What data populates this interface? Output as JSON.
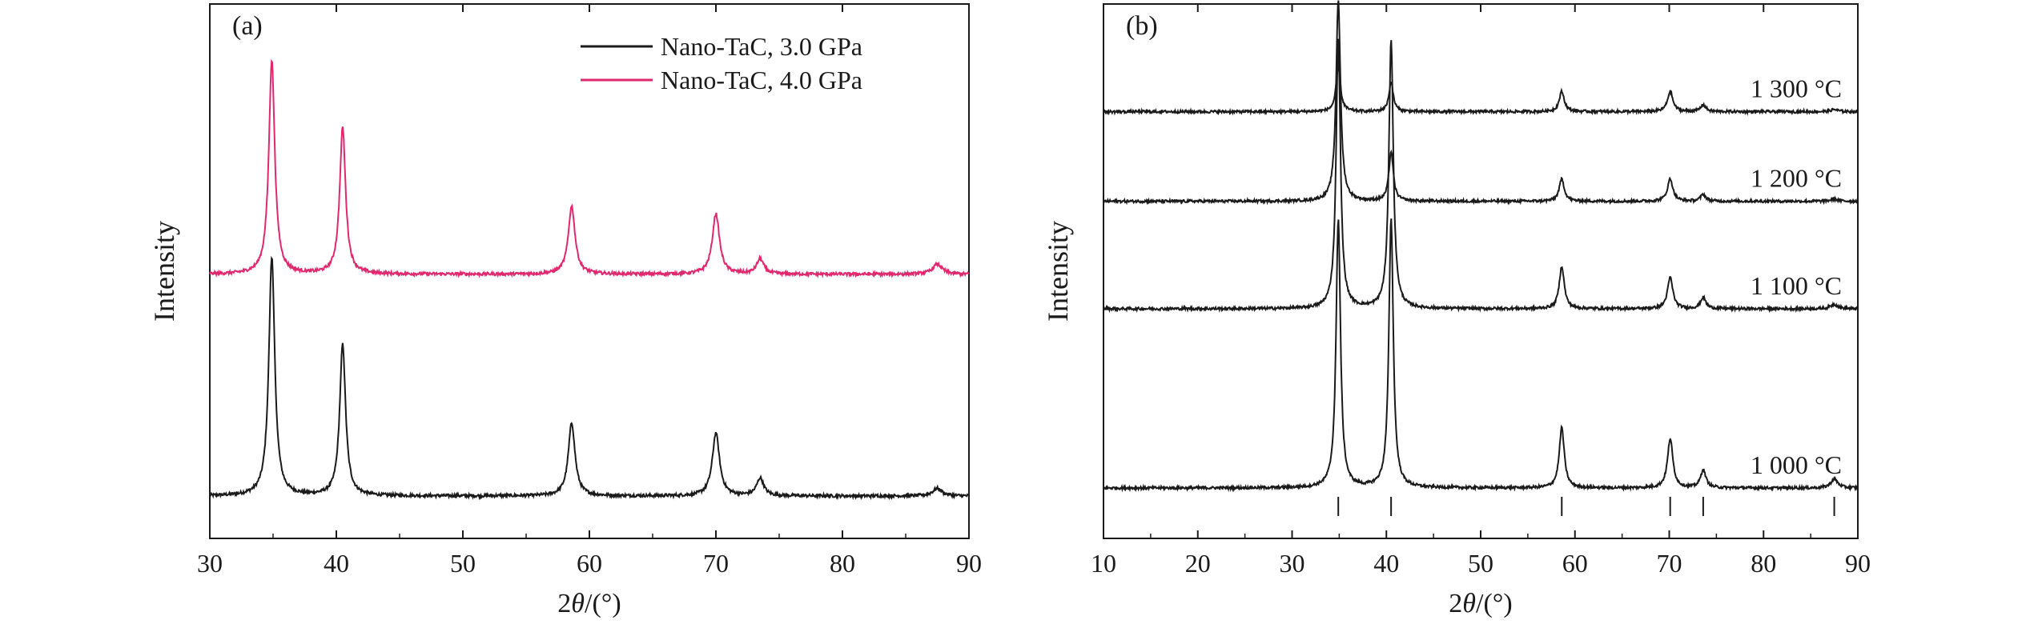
{
  "colors": {
    "black_series": "#1a1a1a",
    "pink_series": "#e0286f",
    "orange_core": "#e0a010"
  },
  "chart_data": [
    {
      "type": "line",
      "panel_label": "(a)",
      "xlabel_prefix": "2",
      "xlabel_theta": "θ",
      "xlabel_suffix": "/(°)",
      "ylabel": "Intensity",
      "xlim": [
        30,
        90
      ],
      "xticks": [
        30,
        40,
        50,
        60,
        70,
        80,
        90
      ],
      "yticks_shown": false,
      "grid": false,
      "legend_position": "top-right",
      "peaks_2theta": [
        34.9,
        40.5,
        58.6,
        70.0,
        73.5,
        87.5
      ],
      "series": [
        {
          "name": "Nano-TaC, 3.0 GPa",
          "color": "#1a1a1a",
          "baseline": 0.0,
          "peak_heights": [
            0.95,
            0.6,
            0.29,
            0.25,
            0.07,
            0.03
          ]
        },
        {
          "name": "Nano-TaC, 4.0 GPa",
          "color": "#e0286f",
          "baseline": 0.44,
          "peak_heights": [
            0.85,
            0.58,
            0.27,
            0.24,
            0.06,
            0.04
          ]
        }
      ]
    },
    {
      "type": "line",
      "panel_label": "(b)",
      "xlabel_prefix": "2",
      "xlabel_theta": "θ",
      "xlabel_suffix": "/(°)",
      "ylabel": "Intensity",
      "xlim": [
        10,
        90
      ],
      "xticks": [
        10,
        20,
        30,
        40,
        50,
        60,
        70,
        80,
        90
      ],
      "yticks_shown": false,
      "grid": false,
      "reference_marks_2theta": [
        34.9,
        40.5,
        58.6,
        70.1,
        73.6,
        87.5
      ],
      "peaks_2theta": [
        34.9,
        40.5,
        58.6,
        70.1,
        73.6,
        87.5
      ],
      "series": [
        {
          "name": "1 000 °C",
          "baseline": 0.0,
          "peak_heights": [
            1.2,
            1.2,
            0.27,
            0.22,
            0.08,
            0.04
          ]
        },
        {
          "name": "1 100 °C",
          "baseline": 0.4,
          "peak_heights": [
            1.2,
            1.2,
            0.19,
            0.14,
            0.05,
            0.02
          ]
        },
        {
          "name": "1 200 °C",
          "baseline": 0.64,
          "peak_heights": [
            0.9,
            0.22,
            0.1,
            0.1,
            0.03,
            0.01
          ]
        },
        {
          "name": "1 300 °C",
          "baseline": 0.84,
          "peak_heights": [
            0.2,
            0.13,
            0.09,
            0.09,
            0.03,
            0.01
          ]
        }
      ]
    }
  ]
}
